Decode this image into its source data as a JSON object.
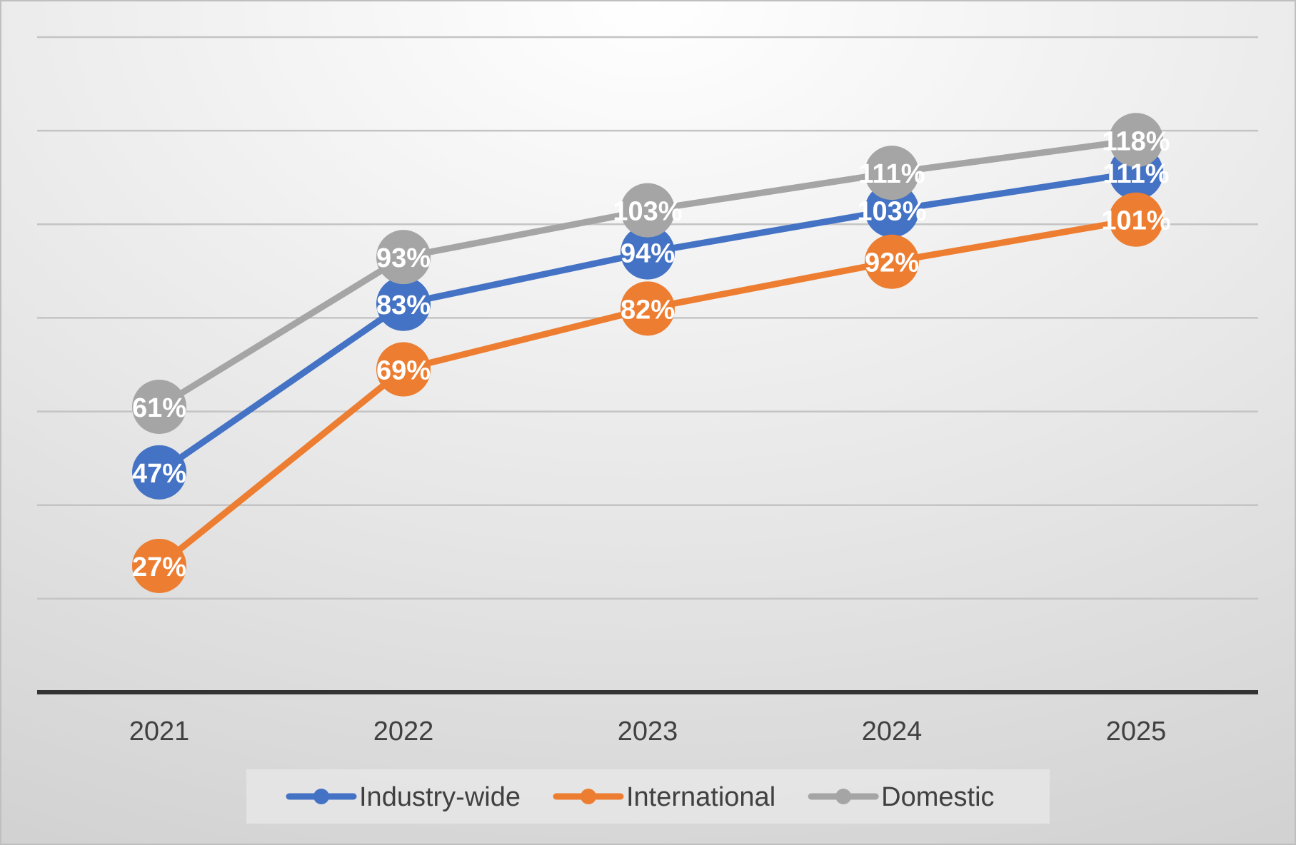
{
  "chart_data": {
    "type": "line",
    "title": "",
    "xlabel": "",
    "ylabel": "",
    "categories": [
      "2021",
      "2022",
      "2023",
      "2024",
      "2025"
    ],
    "ylim": [
      0,
      140
    ],
    "y_gridline_step": 20,
    "y_axis_tick_labels_shown": false,
    "grid": true,
    "legend_position": "bottom",
    "series": [
      {
        "name": "Industry-wide",
        "color": "#4472c4",
        "values": [
          47,
          83,
          94,
          103,
          111
        ],
        "labels": [
          "47%",
          "83%",
          "94%",
          "103%",
          "111%"
        ]
      },
      {
        "name": "International",
        "color": "#ed7d31",
        "values": [
          27,
          69,
          82,
          92,
          101
        ],
        "labels": [
          "27%",
          "69%",
          "82%",
          "92%",
          "101%"
        ]
      },
      {
        "name": "Domestic",
        "color": "#a5a5a5",
        "values": [
          61,
          93,
          103,
          111,
          118
        ],
        "labels": [
          "61%",
          "93%",
          "103%",
          "111%",
          "118%"
        ]
      }
    ]
  }
}
